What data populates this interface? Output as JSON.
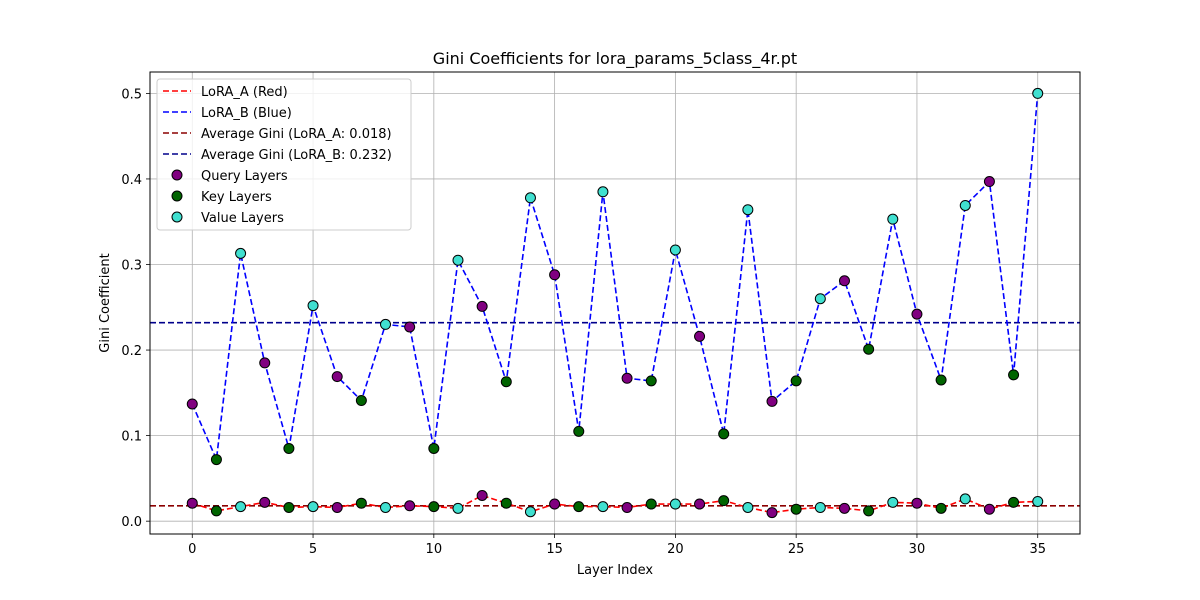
{
  "chart_data": {
    "type": "line",
    "title": "Gini Coefficients for lora_params_5class_4r.pt",
    "xlabel": "Layer Index",
    "ylabel": "Gini Coefficient",
    "xlim": [
      -1.75,
      36.75
    ],
    "ylim": [
      -0.015,
      0.525
    ],
    "xticks": [
      0,
      5,
      10,
      15,
      20,
      25,
      30,
      35
    ],
    "yticks": [
      0.0,
      0.1,
      0.2,
      0.3,
      0.4,
      0.5
    ],
    "xtick_labels": [
      "0",
      "5",
      "10",
      "15",
      "20",
      "25",
      "30",
      "35"
    ],
    "ytick_labels": [
      "0.0",
      "0.1",
      "0.2",
      "0.3",
      "0.4",
      "0.5"
    ],
    "grid": true,
    "legend_position": "upper-left",
    "x": [
      0,
      1,
      2,
      3,
      4,
      5,
      6,
      7,
      8,
      9,
      10,
      11,
      12,
      13,
      14,
      15,
      16,
      17,
      18,
      19,
      20,
      21,
      22,
      23,
      24,
      25,
      26,
      27,
      28,
      29,
      30,
      31,
      32,
      33,
      34,
      35
    ],
    "layer_types": [
      "query",
      "key",
      "value",
      "query",
      "key",
      "value",
      "query",
      "key",
      "value",
      "query",
      "key",
      "value",
      "query",
      "key",
      "value",
      "query",
      "key",
      "value",
      "query",
      "key",
      "value",
      "query",
      "key",
      "value",
      "query",
      "key",
      "value",
      "query",
      "key",
      "value",
      "query",
      "key",
      "value",
      "query",
      "key",
      "value"
    ],
    "series": [
      {
        "name": "LoRA_A (Red)",
        "color": "#ff0000",
        "style": "dashed",
        "values": [
          0.021,
          0.012,
          0.017,
          0.022,
          0.016,
          0.017,
          0.016,
          0.021,
          0.016,
          0.018,
          0.017,
          0.015,
          0.03,
          0.021,
          0.011,
          0.02,
          0.017,
          0.017,
          0.016,
          0.02,
          0.02,
          0.02,
          0.024,
          0.016,
          0.01,
          0.014,
          0.016,
          0.015,
          0.012,
          0.022,
          0.021,
          0.015,
          0.026,
          0.014,
          0.022,
          0.023
        ]
      },
      {
        "name": "LoRA_B (Blue)",
        "color": "#0000ff",
        "style": "dashed",
        "values": [
          0.137,
          0.072,
          0.313,
          0.185,
          0.085,
          0.252,
          0.169,
          0.141,
          0.23,
          0.227,
          0.085,
          0.305,
          0.251,
          0.163,
          0.378,
          0.288,
          0.105,
          0.385,
          0.167,
          0.164,
          0.317,
          0.216,
          0.102,
          0.364,
          0.14,
          0.164,
          0.26,
          0.281,
          0.201,
          0.353,
          0.242,
          0.165,
          0.369,
          0.397,
          0.171,
          0.5
        ]
      }
    ],
    "averages": [
      {
        "name": "Average Gini (LoRA_A: 0.018)",
        "value": 0.018,
        "color": "#8b0000"
      },
      {
        "name": "Average Gini (LoRA_B: 0.232)",
        "value": 0.232,
        "color": "#00008b"
      }
    ],
    "layer_markers": [
      {
        "type": "query",
        "name": "Query Layers",
        "color": "#800080"
      },
      {
        "type": "key",
        "name": "Key Layers",
        "color": "#006400"
      },
      {
        "type": "value",
        "name": "Value Layers",
        "color": "#40e0d0"
      }
    ]
  }
}
